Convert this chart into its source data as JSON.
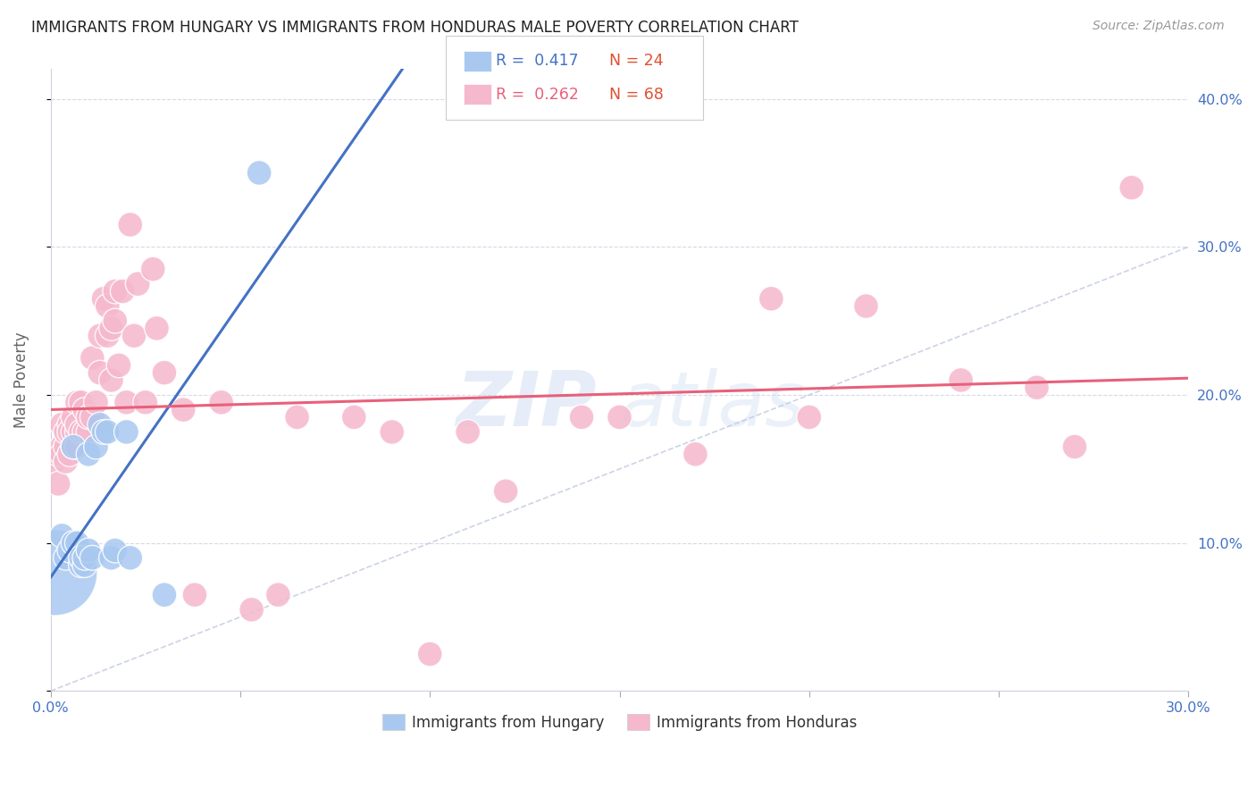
{
  "title": "IMMIGRANTS FROM HUNGARY VS IMMIGRANTS FROM HONDURAS MALE POVERTY CORRELATION CHART",
  "source": "Source: ZipAtlas.com",
  "ylabel": "Male Poverty",
  "xlim": [
    0.0,
    0.3
  ],
  "ylim": [
    0.0,
    0.42
  ],
  "xticks": [
    0.0,
    0.05,
    0.1,
    0.15,
    0.2,
    0.25,
    0.3
  ],
  "xtick_labels_show": [
    "0.0%",
    "",
    "",
    "",
    "",
    "",
    "30.0%"
  ],
  "yticks": [
    0.0,
    0.1,
    0.2,
    0.3,
    0.4
  ],
  "right_ytick_labels": [
    "",
    "10.0%",
    "20.0%",
    "30.0%",
    "40.0%"
  ],
  "legend_r1": "0.417",
  "legend_n1": "24",
  "legend_r2": "0.262",
  "legend_n2": "68",
  "legend_label1": "Immigrants from Hungary",
  "legend_label2": "Immigrants from Honduras",
  "hungary_color": "#a8c8f0",
  "honduras_color": "#f5b8cc",
  "hungary_line_color": "#4472c4",
  "honduras_line_color": "#e8607a",
  "diagonal_color": "#c0c8e0",
  "watermark_line1": "ZIP",
  "watermark_line2": "atlas",
  "hungary_x": [
    0.001,
    0.003,
    0.004,
    0.005,
    0.006,
    0.006,
    0.007,
    0.008,
    0.008,
    0.009,
    0.009,
    0.01,
    0.01,
    0.011,
    0.012,
    0.013,
    0.014,
    0.015,
    0.016,
    0.017,
    0.02,
    0.021,
    0.03,
    0.055
  ],
  "hungary_y": [
    0.08,
    0.105,
    0.09,
    0.095,
    0.1,
    0.165,
    0.1,
    0.085,
    0.09,
    0.085,
    0.09,
    0.095,
    0.16,
    0.09,
    0.165,
    0.18,
    0.175,
    0.175,
    0.09,
    0.095,
    0.175,
    0.09,
    0.065,
    0.35
  ],
  "hungary_size": [
    600,
    50,
    50,
    50,
    50,
    50,
    50,
    50,
    50,
    50,
    50,
    50,
    50,
    50,
    50,
    50,
    50,
    50,
    50,
    50,
    50,
    50,
    50,
    50
  ],
  "honduras_x": [
    0.001,
    0.002,
    0.002,
    0.003,
    0.003,
    0.003,
    0.004,
    0.004,
    0.004,
    0.005,
    0.005,
    0.005,
    0.006,
    0.006,
    0.006,
    0.007,
    0.007,
    0.007,
    0.007,
    0.008,
    0.008,
    0.009,
    0.009,
    0.01,
    0.01,
    0.011,
    0.011,
    0.012,
    0.013,
    0.013,
    0.014,
    0.015,
    0.015,
    0.016,
    0.016,
    0.017,
    0.017,
    0.018,
    0.019,
    0.02,
    0.021,
    0.022,
    0.023,
    0.025,
    0.027,
    0.028,
    0.03,
    0.035,
    0.038,
    0.045,
    0.053,
    0.06,
    0.065,
    0.08,
    0.09,
    0.1,
    0.11,
    0.12,
    0.14,
    0.15,
    0.17,
    0.19,
    0.2,
    0.215,
    0.24,
    0.26,
    0.27,
    0.285
  ],
  "honduras_y": [
    0.155,
    0.16,
    0.14,
    0.165,
    0.18,
    0.16,
    0.165,
    0.175,
    0.155,
    0.18,
    0.16,
    0.175,
    0.175,
    0.185,
    0.165,
    0.195,
    0.175,
    0.18,
    0.165,
    0.195,
    0.175,
    0.19,
    0.175,
    0.175,
    0.185,
    0.225,
    0.185,
    0.195,
    0.24,
    0.215,
    0.265,
    0.24,
    0.26,
    0.245,
    0.21,
    0.25,
    0.27,
    0.22,
    0.27,
    0.195,
    0.315,
    0.24,
    0.275,
    0.195,
    0.285,
    0.245,
    0.215,
    0.19,
    0.065,
    0.195,
    0.055,
    0.065,
    0.185,
    0.185,
    0.175,
    0.025,
    0.175,
    0.135,
    0.185,
    0.185,
    0.16,
    0.265,
    0.185,
    0.26,
    0.21,
    0.205,
    0.165,
    0.34
  ],
  "honduras_size": [
    50,
    50,
    50,
    50,
    50,
    50,
    50,
    50,
    50,
    50,
    50,
    50,
    50,
    50,
    50,
    50,
    50,
    50,
    50,
    50,
    50,
    50,
    50,
    50,
    50,
    50,
    50,
    50,
    50,
    50,
    50,
    50,
    50,
    50,
    50,
    50,
    50,
    50,
    50,
    50,
    50,
    50,
    50,
    50,
    50,
    50,
    50,
    50,
    50,
    50,
    50,
    50,
    50,
    50,
    50,
    50,
    50,
    50,
    50,
    50,
    50,
    50,
    50,
    50,
    50,
    50,
    50,
    50
  ]
}
